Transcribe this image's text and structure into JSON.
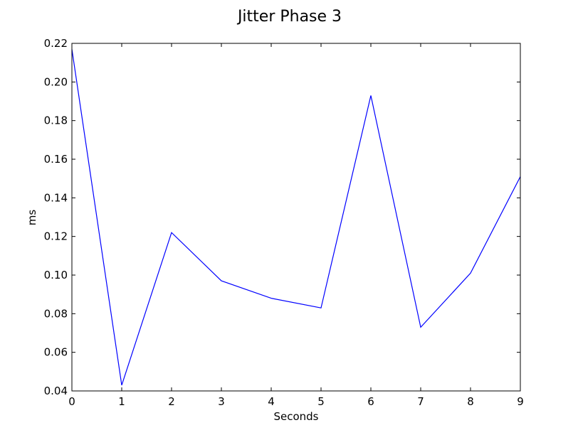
{
  "chart_data": {
    "type": "line",
    "title": "Jitter Phase 3",
    "xlabel": "Seconds",
    "ylabel": "ms",
    "xlim": [
      0,
      9
    ],
    "ylim": [
      0.04,
      0.22
    ],
    "x_ticks": [
      "0",
      "1",
      "2",
      "3",
      "4",
      "5",
      "6",
      "7",
      "8",
      "9"
    ],
    "y_ticks": [
      "0.04",
      "0.06",
      "0.08",
      "0.10",
      "0.12",
      "0.14",
      "0.16",
      "0.18",
      "0.20",
      "0.22"
    ],
    "grid": false,
    "series": [
      {
        "color": "#0000ff",
        "x": [
          0,
          1,
          2,
          3,
          4,
          5,
          6,
          7,
          8,
          9
        ],
        "y": [
          0.217,
          0.043,
          0.122,
          0.097,
          0.088,
          0.083,
          0.193,
          0.073,
          0.101,
          0.151
        ]
      }
    ]
  }
}
